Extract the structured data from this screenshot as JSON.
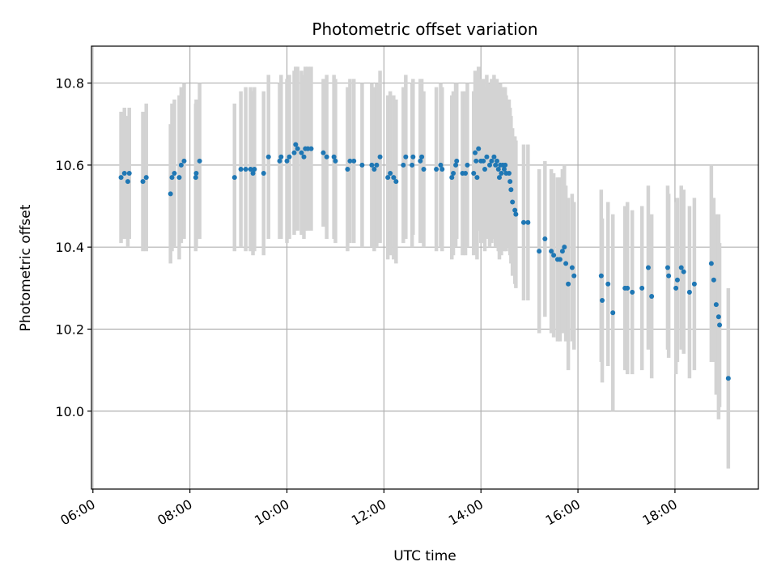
{
  "chart_data": {
    "type": "scatter",
    "title": "Photometric offset variation",
    "xlabel": "UTC time",
    "ylabel": "Photometric offset",
    "x_unit": "hour_of_day_utc",
    "xlim": [
      5.97,
      19.72
    ],
    "ylim": [
      9.81,
      10.89
    ],
    "x_ticks": [
      6,
      8,
      10,
      12,
      14,
      16,
      18
    ],
    "x_tick_labels": [
      "06:00",
      "08:00",
      "10:00",
      "12:00",
      "14:00",
      "16:00",
      "18:00"
    ],
    "y_ticks": [
      10.0,
      10.2,
      10.4,
      10.6,
      10.8
    ],
    "y_tick_labels": [
      "10.0",
      "10.2",
      "10.4",
      "10.6",
      "10.8"
    ],
    "grid": true,
    "marker_color": "#1f77b4",
    "errorbar_color": "#d3d3d3",
    "series": [
      {
        "points": [
          [
            6.58,
            10.57,
            0.16
          ],
          [
            6.65,
            10.58,
            0.16
          ],
          [
            6.72,
            10.56,
            0.16
          ],
          [
            6.75,
            10.58,
            0.16
          ],
          [
            7.03,
            10.56,
            0.17
          ],
          [
            7.1,
            10.57,
            0.18
          ],
          [
            7.6,
            10.53,
            0.17
          ],
          [
            7.63,
            10.57,
            0.18
          ],
          [
            7.68,
            10.58,
            0.18
          ],
          [
            7.78,
            10.57,
            0.2
          ],
          [
            7.82,
            10.6,
            0.19
          ],
          [
            7.88,
            10.61,
            0.19
          ],
          [
            8.12,
            10.57,
            0.18
          ],
          [
            8.13,
            10.58,
            0.18
          ],
          [
            8.2,
            10.61,
            0.19
          ],
          [
            8.92,
            10.57,
            0.18
          ],
          [
            9.05,
            10.59,
            0.19
          ],
          [
            9.15,
            10.59,
            0.2
          ],
          [
            9.25,
            10.59,
            0.2
          ],
          [
            9.3,
            10.58,
            0.2
          ],
          [
            9.33,
            10.59,
            0.2
          ],
          [
            9.52,
            10.58,
            0.2
          ],
          [
            9.62,
            10.62,
            0.2
          ],
          [
            9.85,
            10.61,
            0.19
          ],
          [
            9.88,
            10.62,
            0.2
          ],
          [
            10.0,
            10.61,
            0.2
          ],
          [
            10.05,
            10.62,
            0.2
          ],
          [
            10.15,
            10.63,
            0.2
          ],
          [
            10.18,
            10.65,
            0.19
          ],
          [
            10.22,
            10.64,
            0.2
          ],
          [
            10.3,
            10.63,
            0.2
          ],
          [
            10.35,
            10.62,
            0.2
          ],
          [
            10.38,
            10.64,
            0.2
          ],
          [
            10.43,
            10.64,
            0.2
          ],
          [
            10.5,
            10.64,
            0.2
          ],
          [
            10.75,
            10.63,
            0.18
          ],
          [
            10.82,
            10.62,
            0.2
          ],
          [
            10.97,
            10.62,
            0.2
          ],
          [
            11.0,
            10.61,
            0.2
          ],
          [
            11.25,
            10.59,
            0.2
          ],
          [
            11.3,
            10.61,
            0.2
          ],
          [
            11.38,
            10.61,
            0.2
          ],
          [
            11.55,
            10.6,
            0.2
          ],
          [
            11.75,
            10.6,
            0.2
          ],
          [
            11.8,
            10.59,
            0.2
          ],
          [
            11.85,
            10.6,
            0.2
          ],
          [
            11.92,
            10.62,
            0.21
          ],
          [
            12.08,
            10.57,
            0.2
          ],
          [
            12.13,
            10.58,
            0.2
          ],
          [
            12.2,
            10.57,
            0.2
          ],
          [
            12.25,
            10.56,
            0.2
          ],
          [
            12.4,
            10.6,
            0.19
          ],
          [
            12.45,
            10.62,
            0.2
          ],
          [
            12.58,
            10.6,
            0.2
          ],
          [
            12.6,
            10.62,
            0.19
          ],
          [
            12.75,
            10.61,
            0.2
          ],
          [
            12.78,
            10.62,
            0.19
          ],
          [
            12.82,
            10.59,
            0.19
          ],
          [
            13.08,
            10.59,
            0.2
          ],
          [
            13.17,
            10.6,
            0.2
          ],
          [
            13.2,
            10.59,
            0.2
          ],
          [
            13.4,
            10.57,
            0.2
          ],
          [
            13.43,
            10.58,
            0.2
          ],
          [
            13.48,
            10.6,
            0.2
          ],
          [
            13.5,
            10.61,
            0.19
          ],
          [
            13.62,
            10.58,
            0.2
          ],
          [
            13.68,
            10.58,
            0.2
          ],
          [
            13.72,
            10.6,
            0.2
          ],
          [
            13.85,
            10.58,
            0.2
          ],
          [
            13.88,
            10.63,
            0.2
          ],
          [
            13.9,
            10.61,
            0.2
          ],
          [
            13.92,
            10.57,
            0.2
          ],
          [
            13.95,
            10.64,
            0.2
          ],
          [
            14.0,
            10.61,
            0.2
          ],
          [
            14.05,
            10.61,
            0.2
          ],
          [
            14.08,
            10.59,
            0.2
          ],
          [
            14.12,
            10.62,
            0.2
          ],
          [
            14.18,
            10.6,
            0.2
          ],
          [
            14.22,
            10.61,
            0.2
          ],
          [
            14.27,
            10.62,
            0.2
          ],
          [
            14.3,
            10.6,
            0.2
          ],
          [
            14.33,
            10.61,
            0.2
          ],
          [
            14.36,
            10.59,
            0.2
          ],
          [
            14.38,
            10.57,
            0.2
          ],
          [
            14.4,
            10.6,
            0.2
          ],
          [
            14.42,
            10.58,
            0.2
          ],
          [
            14.45,
            10.6,
            0.19
          ],
          [
            14.48,
            10.59,
            0.2
          ],
          [
            14.5,
            10.6,
            0.19
          ],
          [
            14.52,
            10.58,
            0.19
          ],
          [
            14.58,
            10.58,
            0.18
          ],
          [
            14.6,
            10.56,
            0.18
          ],
          [
            14.62,
            10.54,
            0.18
          ],
          [
            14.65,
            10.51,
            0.18
          ],
          [
            14.7,
            10.49,
            0.18
          ],
          [
            14.72,
            10.48,
            0.18
          ],
          [
            14.88,
            10.46,
            0.19
          ],
          [
            14.97,
            10.46,
            0.19
          ],
          [
            15.2,
            10.39,
            0.2
          ],
          [
            15.32,
            10.42,
            0.19
          ],
          [
            15.45,
            10.39,
            0.2
          ],
          [
            15.5,
            10.38,
            0.2
          ],
          [
            15.58,
            10.37,
            0.2
          ],
          [
            15.63,
            10.37,
            0.2
          ],
          [
            15.68,
            10.39,
            0.2
          ],
          [
            15.72,
            10.4,
            0.2
          ],
          [
            15.75,
            10.36,
            0.19
          ],
          [
            15.8,
            10.31,
            0.21
          ],
          [
            15.88,
            10.35,
            0.18
          ],
          [
            15.92,
            10.33,
            0.18
          ],
          [
            16.48,
            10.33,
            0.21
          ],
          [
            16.5,
            10.27,
            0.2
          ],
          [
            16.62,
            10.31,
            0.2
          ],
          [
            16.72,
            10.24,
            0.24
          ],
          [
            16.97,
            10.3,
            0.2
          ],
          [
            17.02,
            10.3,
            0.21
          ],
          [
            17.12,
            10.29,
            0.2
          ],
          [
            17.32,
            10.3,
            0.2
          ],
          [
            17.45,
            10.35,
            0.2
          ],
          [
            17.52,
            10.28,
            0.2
          ],
          [
            17.85,
            10.35,
            0.2
          ],
          [
            17.87,
            10.33,
            0.2
          ],
          [
            18.02,
            10.3,
            0.21
          ],
          [
            18.05,
            10.32,
            0.2
          ],
          [
            18.13,
            10.35,
            0.2
          ],
          [
            18.18,
            10.34,
            0.2
          ],
          [
            18.3,
            10.29,
            0.21
          ],
          [
            18.4,
            10.31,
            0.21
          ],
          [
            18.75,
            10.36,
            0.24
          ],
          [
            18.8,
            10.32,
            0.2
          ],
          [
            18.85,
            10.26,
            0.22
          ],
          [
            18.9,
            10.23,
            0.25
          ],
          [
            18.92,
            10.21,
            0.2
          ],
          [
            19.1,
            10.08,
            0.22
          ]
        ]
      }
    ]
  }
}
